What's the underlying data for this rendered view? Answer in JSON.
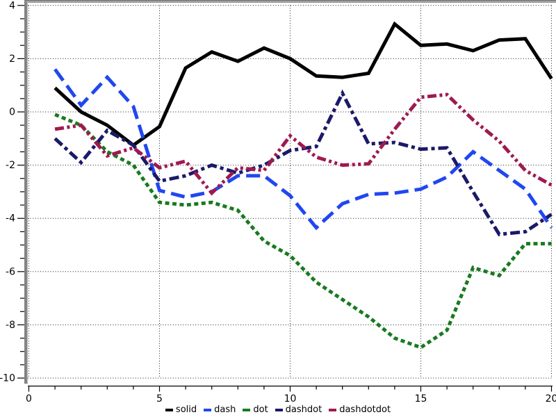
{
  "chart_data": {
    "type": "line",
    "title": "",
    "xlabel": "",
    "ylabel": "",
    "xlim": [
      0,
      20
    ],
    "ylim": [
      -10,
      4
    ],
    "grid": "dotted",
    "legend_position": "bottom-center",
    "x": [
      1,
      2,
      3,
      4,
      5,
      6,
      7,
      8,
      9,
      10,
      11,
      12,
      13,
      14,
      15,
      16,
      17,
      18,
      19,
      20
    ],
    "x_tick_values": [
      0,
      5,
      10,
      15,
      20
    ],
    "x_tick_labels": [
      "0",
      "5",
      "10",
      "15",
      "20"
    ],
    "x_minor_step": 1,
    "y_tick_values": [
      4,
      2,
      0,
      -2,
      -4,
      -6,
      -8,
      -10
    ],
    "y_tick_labels": [
      "4",
      "2",
      "0",
      "-2",
      "-4",
      "-6",
      "-8",
      "-10"
    ],
    "y_minor_step": 0.5,
    "colors": {
      "background": "#ffffff",
      "frame": "#828282",
      "grid": "#1a1a1a",
      "axis": "#000000"
    },
    "series": [
      {
        "name": "solid",
        "color": "#000000",
        "dash": "solid",
        "values": [
          0.9,
          0.0,
          -0.5,
          -1.25,
          -0.55,
          1.65,
          2.25,
          1.9,
          2.4,
          2.0,
          1.35,
          1.3,
          1.45,
          3.3,
          2.5,
          2.55,
          2.3,
          2.7,
          2.75,
          1.25
        ]
      },
      {
        "name": "dash",
        "color": "#2047f0",
        "dash": "dash",
        "values": [
          1.6,
          0.25,
          1.3,
          0.2,
          -2.95,
          -3.2,
          -3.0,
          -2.4,
          -2.4,
          -3.15,
          -4.35,
          -3.45,
          -3.1,
          -3.05,
          -2.9,
          -2.45,
          -1.5,
          -2.2,
          -2.9,
          -4.35
        ]
      },
      {
        "name": "dot",
        "color": "#197a20",
        "dash": "dot",
        "values": [
          -0.1,
          -0.5,
          -1.5,
          -2.0,
          -3.4,
          -3.5,
          -3.4,
          -3.7,
          -4.85,
          -5.4,
          -6.4,
          -7.05,
          -7.7,
          -8.5,
          -8.85,
          -8.2,
          -5.85,
          -6.15,
          -4.95,
          -4.95
        ]
      },
      {
        "name": "dashdot",
        "color": "#1a1a69",
        "dash": "dashdot",
        "values": [
          -1.0,
          -1.9,
          -0.7,
          -1.25,
          -2.6,
          -2.4,
          -2.0,
          -2.3,
          -2.0,
          -1.45,
          -1.3,
          0.7,
          -1.2,
          -1.15,
          -1.4,
          -1.35,
          -3.0,
          -4.6,
          -4.5,
          -3.85
        ]
      },
      {
        "name": "dashdotdot",
        "color": "#9e1a50",
        "dash": "dashdotdot",
        "values": [
          -0.65,
          -0.5,
          -1.65,
          -1.35,
          -2.1,
          -1.85,
          -3.05,
          -2.1,
          -2.2,
          -0.9,
          -1.7,
          -2.0,
          -1.95,
          -0.65,
          0.55,
          0.65,
          -0.3,
          -1.1,
          -2.2,
          -2.75
        ]
      }
    ]
  },
  "legend": {
    "items": [
      {
        "label": "solid"
      },
      {
        "label": "dash"
      },
      {
        "label": "dot"
      },
      {
        "label": "dashdot"
      },
      {
        "label": "dashdotdot"
      }
    ]
  }
}
